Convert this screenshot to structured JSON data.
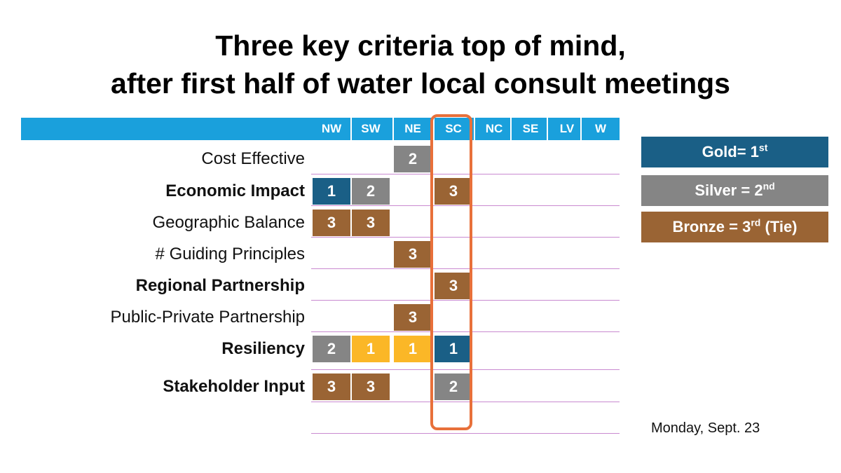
{
  "title": {
    "line1": "Three key criteria top of mind,",
    "line2": "after first half of water local consult meetings"
  },
  "columns": [
    "NW",
    "SW",
    "NE",
    "SC",
    "NC",
    "SE",
    "LV",
    "W"
  ],
  "highlighted_column": "SC",
  "rows": [
    {
      "label": "Cost Effective",
      "bold": false,
      "NE": "2"
    },
    {
      "label": "Economic Impact",
      "bold": true,
      "NW": "1",
      "SW": "2",
      "SC": "3"
    },
    {
      "label": "Geographic Balance",
      "bold": false,
      "NW": "3",
      "SW": "3"
    },
    {
      "label": "# Guiding Principles",
      "bold": false,
      "NE": "3"
    },
    {
      "label": "Regional Partnership",
      "bold": true,
      "SC": "3"
    },
    {
      "label": "Public-Private Partnership",
      "bold": false,
      "NE": "3"
    },
    {
      "label": "Resiliency",
      "bold": true,
      "NW": "2",
      "SW": "1",
      "NE": "1",
      "SC": "1"
    },
    {
      "label": "Stakeholder Input",
      "bold": true,
      "NW": "3",
      "SW": "3",
      "SC": "2"
    }
  ],
  "legend": {
    "gold": {
      "prefix": "Gold= 1",
      "sup": "st",
      "suffix": ""
    },
    "silver": {
      "prefix": "Silver = 2",
      "sup": "nd",
      "suffix": ""
    },
    "bronze": {
      "prefix": "Bronze = 3",
      "sup": "rd",
      "suffix": " (Tie)"
    }
  },
  "date": "Monday, Sept. 23",
  "colors": {
    "header": "#1aa0dc",
    "gold_legend": "#1a5f86",
    "silver": "#858585",
    "bronze": "#9a6434",
    "yellow": "#fbb727",
    "highlight_border": "#e8703a",
    "row_line": "#c98ad0"
  },
  "cell_colors": {
    "Economic Impact|NW": "#1a5f86",
    "Resiliency|SW": "#fbb727",
    "Resiliency|NE": "#fbb727",
    "Resiliency|SC": "#1a5f86"
  }
}
